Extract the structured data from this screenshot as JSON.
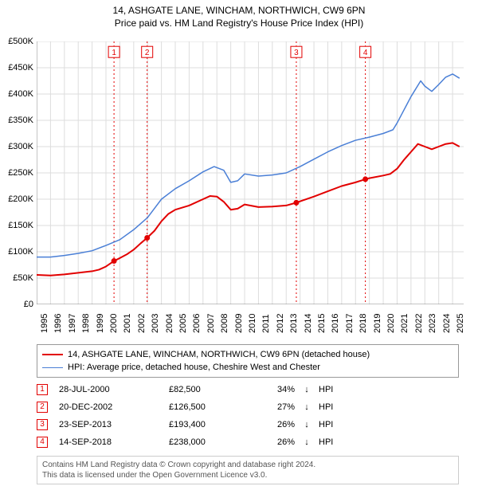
{
  "titles": {
    "line1": "14, ASHGATE LANE, WINCHAM, NORTHWICH, CW9 6PN",
    "line2": "Price paid vs. HM Land Registry's House Price Index (HPI)"
  },
  "chart": {
    "type": "line",
    "background_color": "#ffffff",
    "grid_color": "#dddddd",
    "axis_color": "#888888",
    "label_fontsize": 11,
    "x": {
      "min": 1995,
      "max": 2025.8,
      "ticks": [
        1995,
        1996,
        1997,
        1998,
        1999,
        2000,
        2001,
        2002,
        2003,
        2004,
        2005,
        2006,
        2007,
        2008,
        2009,
        2010,
        2011,
        2012,
        2013,
        2014,
        2015,
        2016,
        2017,
        2018,
        2019,
        2020,
        2021,
        2022,
        2023,
        2024,
        2025
      ]
    },
    "y": {
      "min": 0,
      "max": 500000,
      "tick_step": 50000,
      "tick_labels": [
        "£0",
        "£50K",
        "£100K",
        "£150K",
        "£200K",
        "£250K",
        "£300K",
        "£350K",
        "£400K",
        "£450K",
        "£500K"
      ]
    },
    "series": [
      {
        "id": "property",
        "label": "14, ASHGATE LANE, WINCHAM, NORTHWICH, CW9 6PN (detached house)",
        "color": "#e20000",
        "line_width": 2,
        "data": [
          [
            1995.0,
            56000
          ],
          [
            1996.0,
            55000
          ],
          [
            1997.0,
            57000
          ],
          [
            1998.0,
            60000
          ],
          [
            1999.0,
            63000
          ],
          [
            1999.5,
            66000
          ],
          [
            2000.0,
            72000
          ],
          [
            2000.58,
            82500
          ],
          [
            2001.0,
            88000
          ],
          [
            2001.5,
            95000
          ],
          [
            2002.0,
            104000
          ],
          [
            2002.5,
            116000
          ],
          [
            2002.97,
            126500
          ],
          [
            2003.5,
            140000
          ],
          [
            2004.0,
            158000
          ],
          [
            2004.5,
            172000
          ],
          [
            2005.0,
            180000
          ],
          [
            2006.0,
            188000
          ],
          [
            2007.0,
            200000
          ],
          [
            2007.5,
            206000
          ],
          [
            2008.0,
            205000
          ],
          [
            2008.5,
            195000
          ],
          [
            2009.0,
            180000
          ],
          [
            2009.5,
            182000
          ],
          [
            2010.0,
            190000
          ],
          [
            2011.0,
            185000
          ],
          [
            2012.0,
            186000
          ],
          [
            2013.0,
            188000
          ],
          [
            2013.73,
            193400
          ],
          [
            2014.0,
            196000
          ],
          [
            2015.0,
            205000
          ],
          [
            2016.0,
            215000
          ],
          [
            2017.0,
            225000
          ],
          [
            2018.0,
            232000
          ],
          [
            2018.71,
            238000
          ],
          [
            2019.0,
            240000
          ],
          [
            2020.0,
            245000
          ],
          [
            2020.5,
            248000
          ],
          [
            2021.0,
            258000
          ],
          [
            2021.5,
            275000
          ],
          [
            2022.0,
            290000
          ],
          [
            2022.5,
            305000
          ],
          [
            2023.0,
            300000
          ],
          [
            2023.5,
            295000
          ],
          [
            2024.0,
            300000
          ],
          [
            2024.5,
            305000
          ],
          [
            2025.0,
            307000
          ],
          [
            2025.5,
            300000
          ]
        ]
      },
      {
        "id": "hpi",
        "label": "HPI: Average price, detached house, Cheshire West and Chester",
        "color": "#4a7fd6",
        "line_width": 1.5,
        "data": [
          [
            1995.0,
            90000
          ],
          [
            1996.0,
            90000
          ],
          [
            1997.0,
            93000
          ],
          [
            1998.0,
            97000
          ],
          [
            1999.0,
            102000
          ],
          [
            2000.0,
            112000
          ],
          [
            2001.0,
            123000
          ],
          [
            2002.0,
            142000
          ],
          [
            2003.0,
            165000
          ],
          [
            2004.0,
            200000
          ],
          [
            2005.0,
            220000
          ],
          [
            2006.0,
            235000
          ],
          [
            2007.0,
            252000
          ],
          [
            2007.8,
            262000
          ],
          [
            2008.5,
            255000
          ],
          [
            2009.0,
            232000
          ],
          [
            2009.5,
            235000
          ],
          [
            2010.0,
            248000
          ],
          [
            2011.0,
            244000
          ],
          [
            2012.0,
            246000
          ],
          [
            2013.0,
            250000
          ],
          [
            2014.0,
            262000
          ],
          [
            2015.0,
            276000
          ],
          [
            2016.0,
            290000
          ],
          [
            2017.0,
            302000
          ],
          [
            2018.0,
            312000
          ],
          [
            2019.0,
            318000
          ],
          [
            2020.0,
            325000
          ],
          [
            2020.7,
            332000
          ],
          [
            2021.0,
            345000
          ],
          [
            2021.5,
            370000
          ],
          [
            2022.0,
            395000
          ],
          [
            2022.7,
            425000
          ],
          [
            2023.0,
            415000
          ],
          [
            2023.5,
            405000
          ],
          [
            2024.0,
            418000
          ],
          [
            2024.5,
            432000
          ],
          [
            2025.0,
            438000
          ],
          [
            2025.5,
            430000
          ]
        ]
      }
    ],
    "markers": [
      {
        "n": "1",
        "x": 2000.58,
        "y": 82500,
        "color": "#e20000"
      },
      {
        "n": "2",
        "x": 2002.97,
        "y": 126500,
        "color": "#e20000"
      },
      {
        "n": "3",
        "x": 2013.73,
        "y": 193400,
        "color": "#e20000"
      },
      {
        "n": "4",
        "x": 2018.71,
        "y": 238000,
        "color": "#e20000"
      }
    ],
    "marker_line_color": "#e20000",
    "marker_line_dash": "2,3",
    "marker_box_top_y": 480000
  },
  "legend": {
    "items": [
      {
        "color": "#e20000",
        "width": 2,
        "text": "14, ASHGATE LANE, WINCHAM, NORTHWICH, CW9 6PN (detached house)"
      },
      {
        "color": "#4a7fd6",
        "width": 1.5,
        "text": "HPI: Average price, detached house, Cheshire West and Chester"
      }
    ]
  },
  "sales": [
    {
      "n": "1",
      "color": "#e20000",
      "date": "28-JUL-2000",
      "price": "£82,500",
      "diff": "34%",
      "arrow": "↓",
      "hpi_label": "HPI"
    },
    {
      "n": "2",
      "color": "#e20000",
      "date": "20-DEC-2002",
      "price": "£126,500",
      "diff": "27%",
      "arrow": "↓",
      "hpi_label": "HPI"
    },
    {
      "n": "3",
      "color": "#e20000",
      "date": "23-SEP-2013",
      "price": "£193,400",
      "diff": "26%",
      "arrow": "↓",
      "hpi_label": "HPI"
    },
    {
      "n": "4",
      "color": "#e20000",
      "date": "14-SEP-2018",
      "price": "£238,000",
      "diff": "26%",
      "arrow": "↓",
      "hpi_label": "HPI"
    }
  ],
  "attribution": {
    "line1": "Contains HM Land Registry data © Crown copyright and database right 2024.",
    "line2": "This data is licensed under the Open Government Licence v3.0."
  }
}
